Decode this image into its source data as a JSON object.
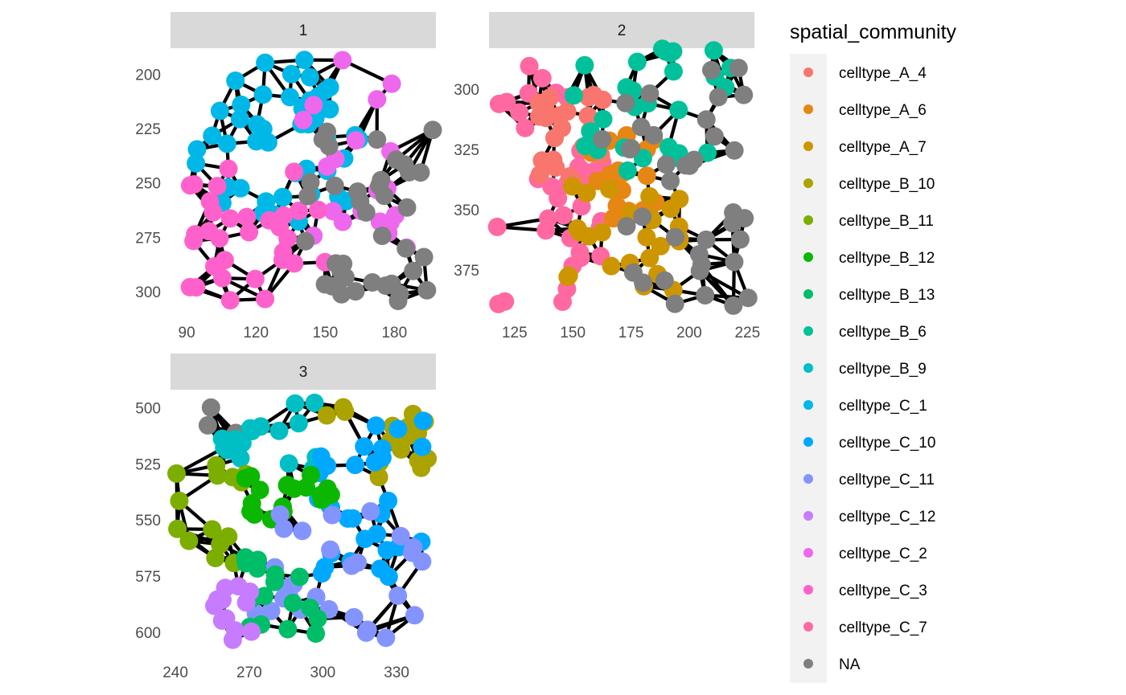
{
  "chart_data": {
    "type": "scatter",
    "subtype": "faceted spatial network",
    "legend": {
      "title": "spatial_community",
      "entries": [
        {
          "label": "celltype_A_4",
          "color": "#F8766D"
        },
        {
          "label": "celltype_A_6",
          "color": "#E68613"
        },
        {
          "label": "celltype_A_7",
          "color": "#CD9600"
        },
        {
          "label": "celltype_B_10",
          "color": "#ABA300"
        },
        {
          "label": "celltype_B_11",
          "color": "#7CAE00"
        },
        {
          "label": "celltype_B_12",
          "color": "#0CB702"
        },
        {
          "label": "celltype_B_13",
          "color": "#00BE67"
        },
        {
          "label": "celltype_B_6",
          "color": "#00C19A"
        },
        {
          "label": "celltype_B_9",
          "color": "#00BFC4"
        },
        {
          "label": "celltype_C_1",
          "color": "#00B8E7"
        },
        {
          "label": "celltype_C_10",
          "color": "#00A9FF"
        },
        {
          "label": "celltype_C_11",
          "color": "#8494FF"
        },
        {
          "label": "celltype_C_12",
          "color": "#C77CFF"
        },
        {
          "label": "celltype_C_2",
          "color": "#ED68ED"
        },
        {
          "label": "celltype_C_3",
          "color": "#FF61CC"
        },
        {
          "label": "celltype_C_7",
          "color": "#FF68A1"
        },
        {
          "label": "NA",
          "color": "#7F7F7F"
        }
      ]
    },
    "edge_color": "#000000",
    "panels": [
      {
        "facet_label": "1",
        "xlim": [
          83,
          198
        ],
        "ylim": [
          310,
          188
        ],
        "xticks": [
          90,
          120,
          150,
          180
        ],
        "yticks": [
          200,
          225,
          250,
          275,
          300
        ],
        "regions": [
          {
            "community": "celltype_C_1",
            "count": 48,
            "x": [
              93,
              165
            ],
            "y": [
              193,
              268
            ]
          },
          {
            "community": "celltype_C_2",
            "count": 20,
            "x": [
              140,
              197
            ],
            "y": [
              193,
              280
            ]
          },
          {
            "community": "celltype_C_3",
            "count": 32,
            "x": [
              85,
              152
            ],
            "y": [
              243,
              305
            ]
          },
          {
            "community": "NA",
            "count": 38,
            "x": [
              140,
              198
            ],
            "y": [
              223,
              305
            ]
          }
        ]
      },
      {
        "facet_label": "2",
        "xlim": [
          114,
          228
        ],
        "ylim": [
          393,
          283
        ],
        "xticks": [
          125,
          150,
          175,
          200,
          225
        ],
        "yticks": [
          300,
          325,
          350,
          375
        ],
        "regions": [
          {
            "community": "celltype_C_7",
            "count": 36,
            "x": [
              116,
              163
            ],
            "y": [
              290,
              390
            ]
          },
          {
            "community": "celltype_A_4",
            "count": 22,
            "x": [
              135,
              168
            ],
            "y": [
              300,
              342
            ]
          },
          {
            "community": "celltype_A_6",
            "count": 20,
            "x": [
              156,
              188
            ],
            "y": [
              318,
              355
            ]
          },
          {
            "community": "celltype_A_7",
            "count": 26,
            "x": [
              140,
              198
            ],
            "y": [
              340,
              385
            ]
          },
          {
            "community": "celltype_B_6",
            "count": 28,
            "x": [
              150,
              222
            ],
            "y": [
              283,
              335
            ]
          },
          {
            "community": "NA",
            "count": 38,
            "x": [
              162,
              226
            ],
            "y": [
              290,
              390
            ]
          }
        ]
      },
      {
        "facet_label": "3",
        "xlim": [
          238,
          346
        ],
        "ylim": [
          610,
          492
        ],
        "xticks": [
          240,
          270,
          300,
          330
        ],
        "yticks": [
          500,
          525,
          550,
          575,
          600
        ],
        "regions": [
          {
            "community": "NA",
            "count": 4,
            "x": [
              243,
              265
            ],
            "y": [
              496,
              520
            ]
          },
          {
            "community": "celltype_B_9",
            "count": 16,
            "x": [
              255,
              300
            ],
            "y": [
              496,
              530
            ]
          },
          {
            "community": "celltype_B_10",
            "count": 18,
            "x": [
              298,
              344
            ],
            "y": [
              499,
              532
            ]
          },
          {
            "community": "celltype_C_10",
            "count": 30,
            "x": [
              298,
              346
            ],
            "y": [
              505,
              580
            ]
          },
          {
            "community": "celltype_B_11",
            "count": 14,
            "x": [
              240,
              272
            ],
            "y": [
              524,
              575
            ]
          },
          {
            "community": "celltype_B_12",
            "count": 18,
            "x": [
              268,
              305
            ],
            "y": [
              530,
              552
            ]
          },
          {
            "community": "celltype_C_11",
            "count": 28,
            "x": [
              270,
              342
            ],
            "y": [
              545,
              605
            ]
          },
          {
            "community": "celltype_B_13",
            "count": 16,
            "x": [
              268,
              298
            ],
            "y": [
              565,
              602
            ]
          },
          {
            "community": "celltype_C_12",
            "count": 12,
            "x": [
              242,
              272
            ],
            "y": [
              578,
              605
            ]
          }
        ]
      }
    ]
  }
}
